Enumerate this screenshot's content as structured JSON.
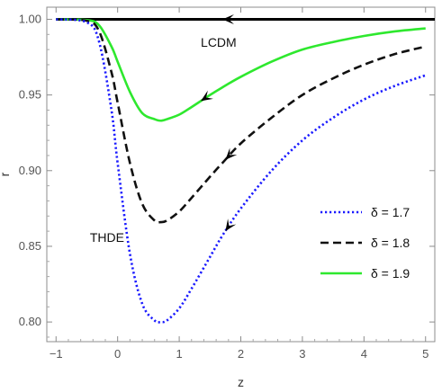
{
  "chart_data": {
    "type": "line",
    "xlabel": "z",
    "ylabel": "r",
    "xlim": [
      -1.15,
      5.15
    ],
    "ylim": [
      0.787,
      1.008
    ],
    "x_ticks": [
      -1,
      0,
      1,
      2,
      3,
      4,
      5
    ],
    "x_tick_labels": [
      "−1",
      "0",
      "1",
      "2",
      "3",
      "4",
      "5"
    ],
    "y_ticks": [
      0.8,
      0.85,
      0.9,
      0.95,
      1.0
    ],
    "y_tick_labels": [
      "0.80",
      "0.85",
      "0.90",
      "0.95",
      "1.00"
    ],
    "grid": false,
    "legend_position": "right",
    "annotations": [
      {
        "text": "LCDM",
        "x": 1.35,
        "y": 0.982
      },
      {
        "text": "THDE",
        "x": -0.45,
        "y": 0.853
      }
    ],
    "series": [
      {
        "name": "δ = 1.7",
        "legend_label": "δ = 1.7",
        "color": "#1a1aff",
        "dash": "dotted",
        "x": [
          -1,
          -0.5,
          -0.3,
          -0.1,
          0,
          0.2,
          0.4,
          0.6,
          0.7,
          0.8,
          1.0,
          1.2,
          1.5,
          1.7,
          2.0,
          2.5,
          3.0,
          3.5,
          4.0,
          4.5,
          5.0
        ],
        "y": [
          1.0,
          0.998,
          0.985,
          0.94,
          0.905,
          0.845,
          0.812,
          0.801,
          0.8,
          0.801,
          0.809,
          0.822,
          0.843,
          0.857,
          0.875,
          0.9,
          0.92,
          0.935,
          0.947,
          0.956,
          0.963
        ]
      },
      {
        "name": "δ = 1.8",
        "legend_label": "δ = 1.8",
        "color": "#111111",
        "dash": "dashed",
        "x": [
          -1,
          -0.5,
          -0.3,
          -0.1,
          0,
          0.2,
          0.4,
          0.6,
          0.7,
          0.8,
          1.0,
          1.2,
          1.5,
          1.7,
          2.0,
          2.5,
          3.0,
          3.5,
          4.0,
          4.5,
          5.0
        ],
        "y": [
          1.0,
          0.999,
          0.992,
          0.965,
          0.945,
          0.905,
          0.878,
          0.867,
          0.866,
          0.867,
          0.873,
          0.882,
          0.896,
          0.905,
          0.918,
          0.935,
          0.95,
          0.961,
          0.97,
          0.977,
          0.982
        ]
      },
      {
        "name": "δ = 1.9",
        "legend_label": "δ = 1.9",
        "color": "#2ee82e",
        "dash": "solid",
        "x": [
          -1,
          -0.5,
          -0.3,
          -0.1,
          0,
          0.2,
          0.4,
          0.6,
          0.7,
          0.8,
          1.0,
          1.2,
          1.5,
          1.7,
          2.0,
          2.5,
          3.0,
          3.5,
          4.0,
          4.5,
          5.0
        ],
        "y": [
          1.0,
          0.9995,
          0.996,
          0.982,
          0.972,
          0.952,
          0.938,
          0.934,
          0.933,
          0.934,
          0.937,
          0.942,
          0.95,
          0.955,
          0.962,
          0.972,
          0.98,
          0.985,
          0.989,
          0.992,
          0.994
        ]
      },
      {
        "name": "LCDM",
        "color": "#000000",
        "dash": "solid",
        "x": [
          -1,
          5.15
        ],
        "y": [
          1.0,
          1.0
        ]
      }
    ],
    "direction_arrows": [
      {
        "series": 3,
        "x": 1.7,
        "y": 1.0
      },
      {
        "series": 2,
        "x": 1.35,
        "y": 0.947
      },
      {
        "series": 1,
        "x": 1.75,
        "y": 0.908
      },
      {
        "series": 0,
        "x": 1.75,
        "y": 0.861
      }
    ]
  }
}
